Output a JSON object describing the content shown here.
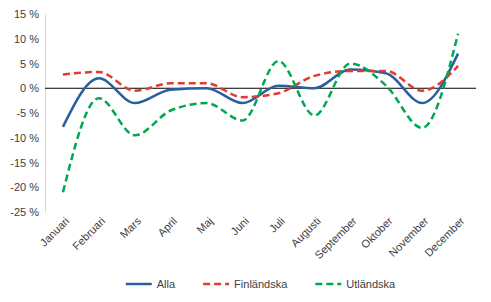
{
  "chart_data": {
    "type": "line",
    "categories": [
      "Januari",
      "Februari",
      "Mars",
      "April",
      "Maj",
      "Juni",
      "Juli",
      "Augusti",
      "September",
      "Oktober",
      "November",
      "December"
    ],
    "series": [
      {
        "name": "Alla",
        "color": "#2a5f9e",
        "line_style": "solid",
        "values": [
          -7.8,
          2,
          -3,
          -0.3,
          0,
          -3,
          0.5,
          0,
          3.8,
          3,
          -3,
          7
        ]
      },
      {
        "name": "Finländska",
        "color": "#e03c31",
        "line_style": "dashed",
        "values": [
          2.8,
          3.3,
          -0.5,
          1,
          1,
          -1.8,
          -1,
          2.5,
          3.5,
          3.5,
          -0.5,
          4.5
        ]
      },
      {
        "name": "Utländska",
        "color": "#00a651",
        "line_style": "dashed",
        "values": [
          -21,
          -2,
          -9.5,
          -4.5,
          -3,
          -6.5,
          5.5,
          -5.5,
          5,
          0.5,
          -8,
          11
        ]
      }
    ],
    "ylim": [
      -25,
      15
    ],
    "yticks": [
      {
        "value": -25,
        "label": "-25 %"
      },
      {
        "value": -20,
        "label": "-20 %"
      },
      {
        "value": -15,
        "label": "-15 %"
      },
      {
        "value": -10,
        "label": "-10 %"
      },
      {
        "value": -5,
        "label": "-5 %"
      },
      {
        "value": 0,
        "label": "0 %"
      },
      {
        "value": 5,
        "label": "5 %"
      },
      {
        "value": 10,
        "label": "10 %"
      },
      {
        "value": 15,
        "label": "15 %"
      }
    ],
    "grid": false,
    "legend": "bottom"
  }
}
